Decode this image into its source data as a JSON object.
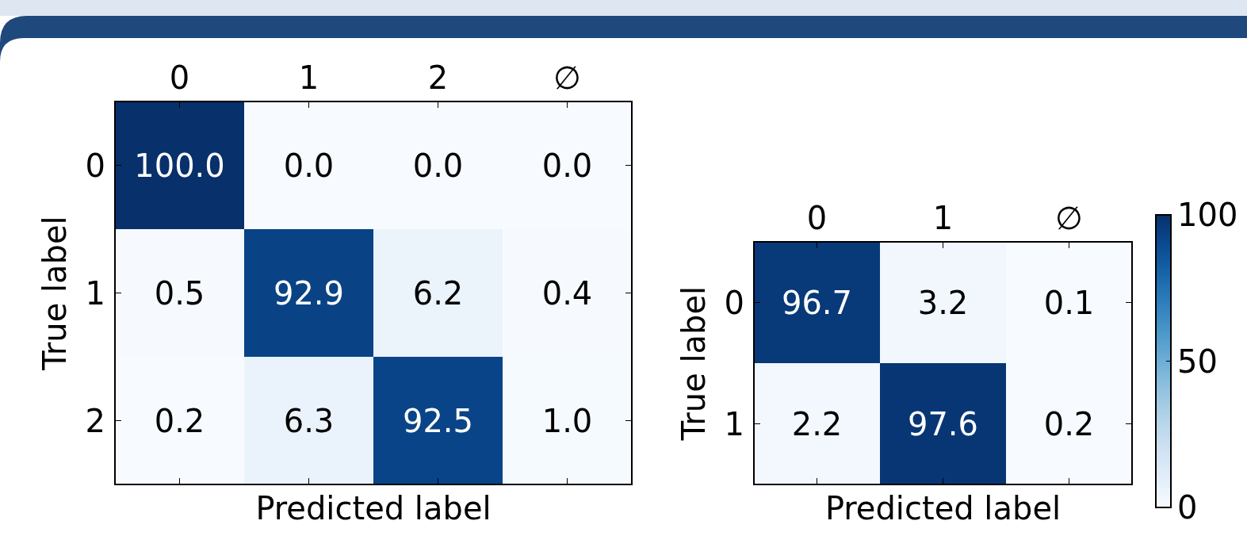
{
  "chart_data": [
    {
      "type": "heatmap",
      "xlabel": "Predicted label",
      "ylabel": "True label",
      "categories": [
        "0",
        "1",
        "2",
        "∅"
      ],
      "y_categories": [
        "0",
        "1",
        "2"
      ],
      "cells": [
        [
          100.0,
          0.0,
          0.0,
          0.0
        ],
        [
          0.5,
          92.9,
          6.2,
          0.4
        ],
        [
          0.2,
          6.3,
          92.5,
          1.0
        ]
      ],
      "cell_labels": [
        [
          "100.0",
          "0.0",
          "0.0",
          "0.0"
        ],
        [
          "0.5",
          "92.9",
          "6.2",
          "0.4"
        ],
        [
          "0.2",
          "6.3",
          "92.5",
          "1.0"
        ]
      ],
      "data_labels": true
    },
    {
      "type": "heatmap",
      "xlabel": "Predicted label",
      "ylabel": "True label",
      "categories": [
        "0",
        "1",
        "∅"
      ],
      "y_categories": [
        "0",
        "1"
      ],
      "cells": [
        [
          96.7,
          3.2,
          0.1
        ],
        [
          2.2,
          97.6,
          0.2
        ]
      ],
      "data_labels": true,
      "clim": [
        0,
        100
      ],
      "cticks": [
        0,
        50,
        100
      ]
    }
  ]
}
